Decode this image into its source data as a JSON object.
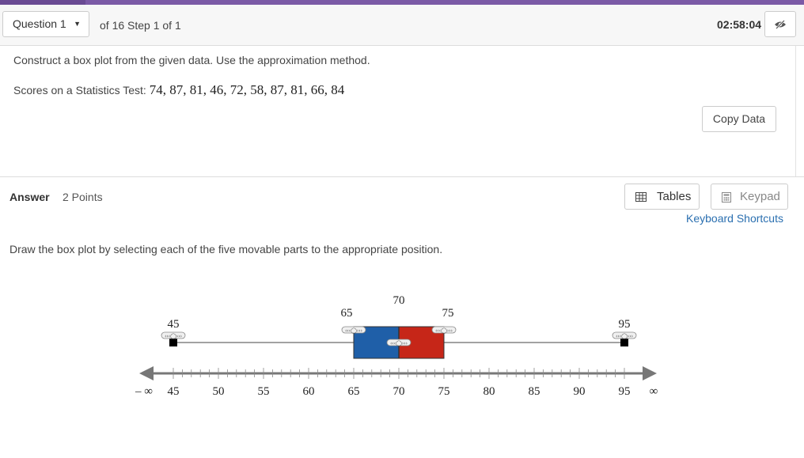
{
  "header": {
    "question_select": "Question 1",
    "progress": "of 16 Step 1 of 1",
    "timer": "02:58:04"
  },
  "question": {
    "prompt": "Construct a box plot from the given data. Use the approximation method.",
    "data_label": "Scores on a Statistics Test:",
    "data_values": "74, 87, 81, 46, 72, 58, 87, 81, 66, 84",
    "copy_label": "Copy Data"
  },
  "answer": {
    "label": "Answer",
    "points": "2 Points",
    "tables_label": "Tables",
    "keypad_label": "Keypad",
    "shortcuts_label": "Keyboard Shortcuts",
    "instruction": "Draw the box plot by selecting each of the five movable parts to the appropriate position."
  },
  "boxplot": {
    "min": 45,
    "q1": 65,
    "median": 70,
    "q3": 75,
    "max": 95,
    "min_label": "45",
    "q1_label": "65",
    "median_label": "70",
    "q3_label": "75",
    "max_label": "95",
    "colors": {
      "lower_box": "#1f5fa8",
      "upper_box": "#c62618"
    }
  },
  "axis": {
    "neg_infinity": "– ∞",
    "pos_infinity": "∞",
    "ticks": [
      "45",
      "50",
      "55",
      "60",
      "65",
      "70",
      "75",
      "80",
      "85",
      "90",
      "95"
    ]
  }
}
